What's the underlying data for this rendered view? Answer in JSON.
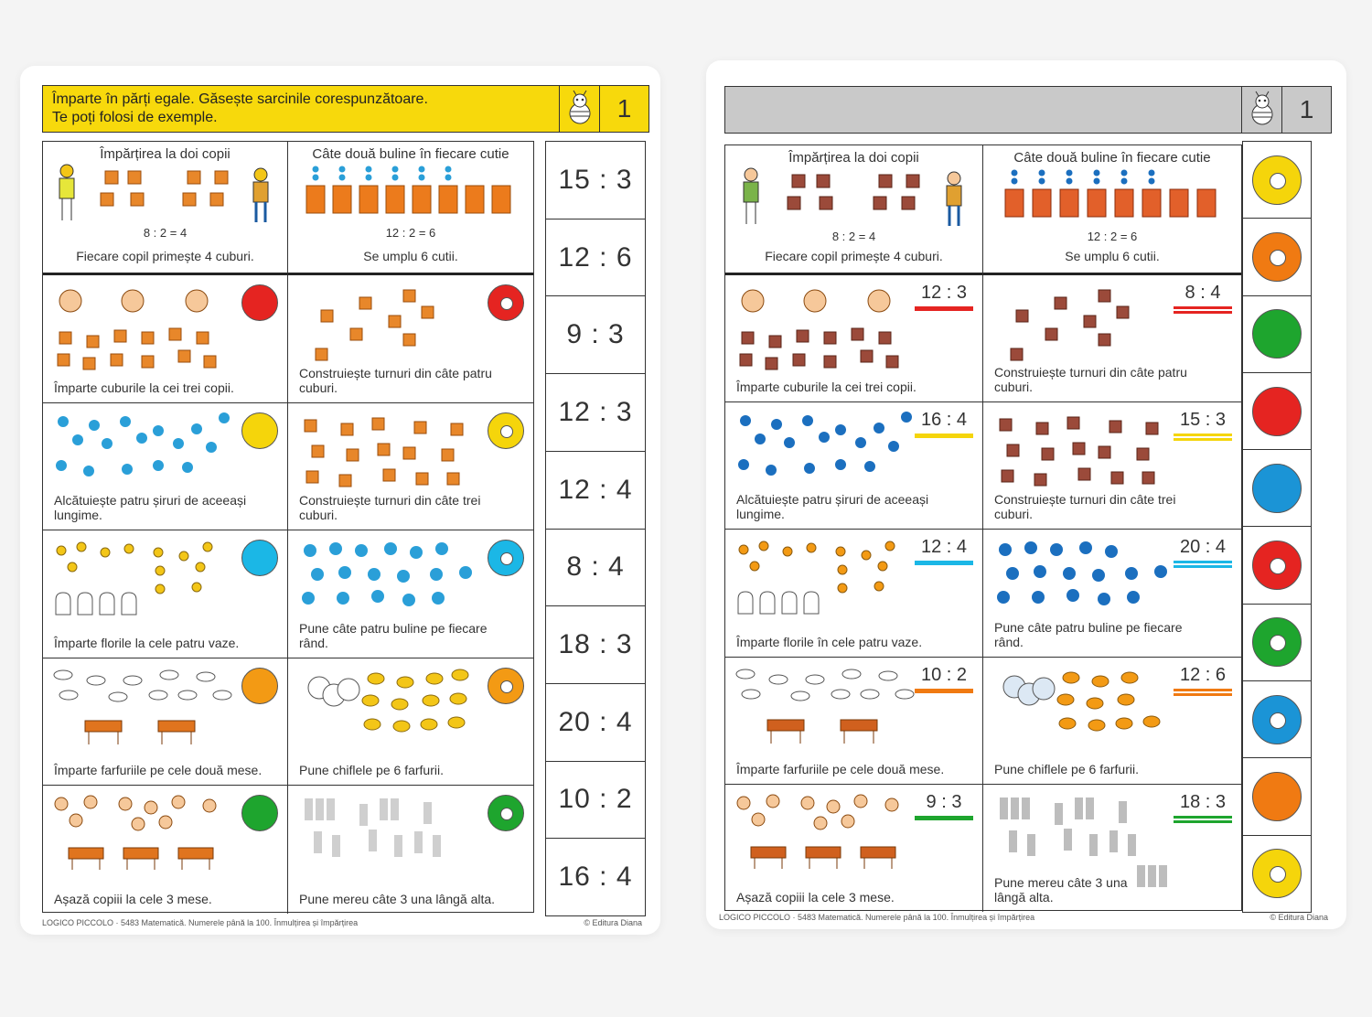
{
  "left_card": {
    "header": {
      "line1": "Împarte în părți egale. Găsește sarcinile corespunzătoare.",
      "line2": "Te poți folosi de exemple.",
      "number": "1"
    },
    "example_left": {
      "title": "Împărțirea la doi copii",
      "equation": "8 : 2 = 4",
      "caption": "Fiecare copil primește 4 cuburi."
    },
    "example_right": {
      "title": "Câte două buline în fiecare cutie",
      "equation": "12 : 2 = 6",
      "caption": "Se umplu 6 cutii."
    },
    "tasks": [
      {
        "left_caption": "Împarte cuburile la cei trei copii.",
        "right_caption": "Construiește turnuri din câte patru cuburi."
      },
      {
        "left_caption": "Alcătuiește patru șiruri de aceeași lungime.",
        "right_caption": "Construiește turnuri din câte trei cuburi."
      },
      {
        "left_caption": "Împarte florile la cele patru vaze.",
        "right_caption": "Pune câte patru buline pe fiecare rând."
      },
      {
        "left_caption": "Împarte farfuriile pe cele două mese.",
        "right_caption": "Pune chiflele pe 6 farfurii."
      },
      {
        "left_caption": "Așază copiii la cele 3 mese.",
        "right_caption": "Pune mereu câte 3 una lângă alta."
      }
    ],
    "answers": [
      "15 : 3",
      "12 : 6",
      "9 : 3",
      "12 : 3",
      "12 : 4",
      "8 : 4",
      "18 : 3",
      "20 : 4",
      "10 : 2",
      "16 : 4"
    ],
    "footer_left": "LOGICO PICCOLO · 5483 Matematică. Numerele până la 100. Înmulțirea și împărțirea",
    "footer_right": "© Editura Diana"
  },
  "right_card": {
    "header": {
      "number": "1"
    },
    "example_left": {
      "title": "Împărțirea la doi copii",
      "equation": "8 : 2 = 4",
      "caption": "Fiecare copil primește 4 cuburi."
    },
    "example_right": {
      "title": "Câte două buline în fiecare cutie",
      "equation": "12 : 2 = 6",
      "caption": "Se umplu 6 cutii."
    },
    "tasks": [
      {
        "left_caption": "Împarte cuburile la cei trei copii.",
        "left_eq": "12 : 3",
        "right_caption": "Construiește turnuri din câte patru cuburi.",
        "right_eq": "8 : 4"
      },
      {
        "left_caption": "Alcătuiește patru șiruri de aceeași lungime.",
        "left_eq": "16 : 4",
        "right_caption": "Construiește turnuri din câte trei cuburi.",
        "right_eq": "15 : 3"
      },
      {
        "left_caption": "Împarte florile în cele patru vaze.",
        "left_eq": "12 : 4",
        "right_caption": "Pune câte patru buline pe fiecare rând.",
        "right_eq": "20 : 4"
      },
      {
        "left_caption": "Împarte farfuriile pe cele două mese.",
        "left_eq": "10 : 2",
        "right_caption": "Pune chiflele pe 6 farfurii.",
        "right_eq": "12 : 6"
      },
      {
        "left_caption": "Așază copiii la cele 3 mese.",
        "left_eq": "9 : 3",
        "right_caption": "Pune mereu câte 3 una lângă alta.",
        "right_eq": "18 : 3"
      }
    ],
    "footer_left": "LOGICO PICCOLO · 5483 Matematică. Numerele până la 100. Înmulțirea și împărțirea",
    "footer_right": "© Editura Diana"
  },
  "colors": {
    "yellow": "#f5d50b",
    "orange": "#f07a12",
    "green": "#1ea52e",
    "red": "#e52421",
    "blue": "#1b94d6",
    "header_yellow": "#f7d90c",
    "header_gray": "#c9c9c9",
    "cube": "#e8872a",
    "dot": "#2a9fd8"
  },
  "badges": {
    "left": [
      {
        "left": "red",
        "left_style": "solid",
        "right": "red",
        "right_style": "ring"
      },
      {
        "left": "yellow",
        "left_style": "solid",
        "right": "yellow",
        "right_style": "ring"
      },
      {
        "left": "blue",
        "left_style": "solid",
        "right": "blue",
        "right_style": "ring"
      },
      {
        "left": "orange",
        "left_style": "solid",
        "right": "orange",
        "right_style": "ring"
      },
      {
        "left": "green",
        "left_style": "solid",
        "right": "green",
        "right_style": "ring"
      }
    ],
    "right_eq_bars": [
      {
        "left": "red",
        "right": "red"
      },
      {
        "left": "yellow",
        "right": "yellow"
      },
      {
        "left": "blue",
        "right": "blue"
      },
      {
        "left": "orange",
        "right": "orange"
      },
      {
        "left": "green",
        "right": "green"
      }
    ]
  },
  "tokens_right": [
    {
      "color": "yellow",
      "style": "ring"
    },
    {
      "color": "orange",
      "style": "ring"
    },
    {
      "color": "green",
      "style": "solid"
    },
    {
      "color": "red",
      "style": "solid"
    },
    {
      "color": "blue",
      "style": "solid"
    },
    {
      "color": "red",
      "style": "ring"
    },
    {
      "color": "green",
      "style": "ring"
    },
    {
      "color": "blue",
      "style": "ring"
    },
    {
      "color": "orange",
      "style": "solid"
    },
    {
      "color": "yellow",
      "style": "ring"
    }
  ]
}
